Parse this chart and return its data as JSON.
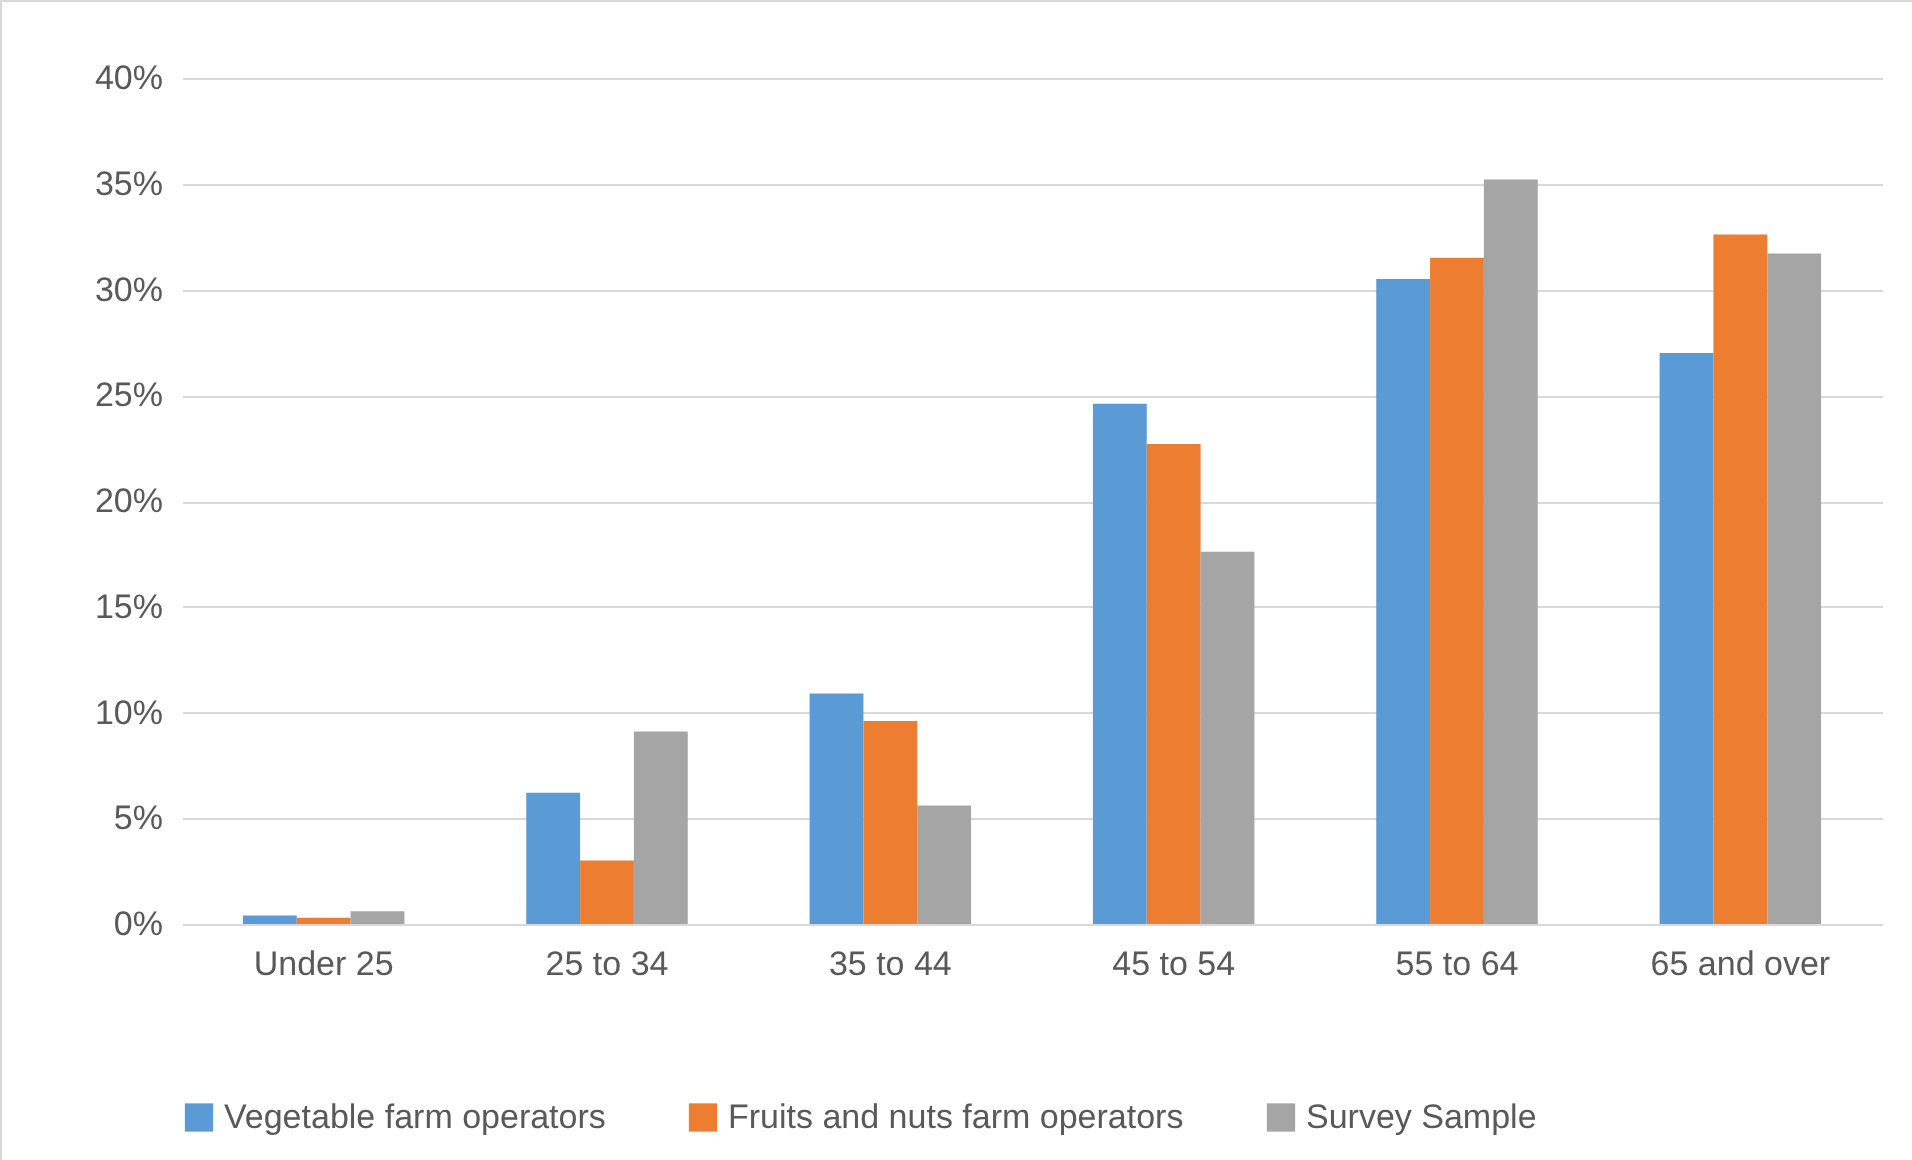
{
  "chart_data": {
    "type": "bar",
    "categories": [
      "Under 25",
      "25 to 34",
      "35 to 44",
      "45 to 54",
      "55 to 64",
      "65 and over"
    ],
    "series": [
      {
        "name": "Vegetable farm operators",
        "color": "#5b9bd5",
        "values": [
          0.4,
          6.2,
          10.9,
          24.6,
          30.5,
          27.0
        ]
      },
      {
        "name": "Fruits and nuts farm operators",
        "color": "#ed7d31",
        "values": [
          0.3,
          3.0,
          9.6,
          22.7,
          31.5,
          32.6
        ]
      },
      {
        "name": "Survey Sample",
        "color": "#a5a5a5",
        "values": [
          0.6,
          9.1,
          5.6,
          17.6,
          35.2,
          31.7
        ]
      }
    ],
    "ylim": [
      0,
      40
    ],
    "yticks": [
      {
        "value": 0,
        "label": "0%"
      },
      {
        "value": 5,
        "label": "5%"
      },
      {
        "value": 10,
        "label": "10%"
      },
      {
        "value": 15,
        "label": "15%"
      },
      {
        "value": 20,
        "label": "20%"
      },
      {
        "value": 25,
        "label": "25%"
      },
      {
        "value": 30,
        "label": "30%"
      },
      {
        "value": 35,
        "label": "35%"
      },
      {
        "value": 40,
        "label": "40%"
      }
    ],
    "grid": "y",
    "legend": "bottom"
  }
}
